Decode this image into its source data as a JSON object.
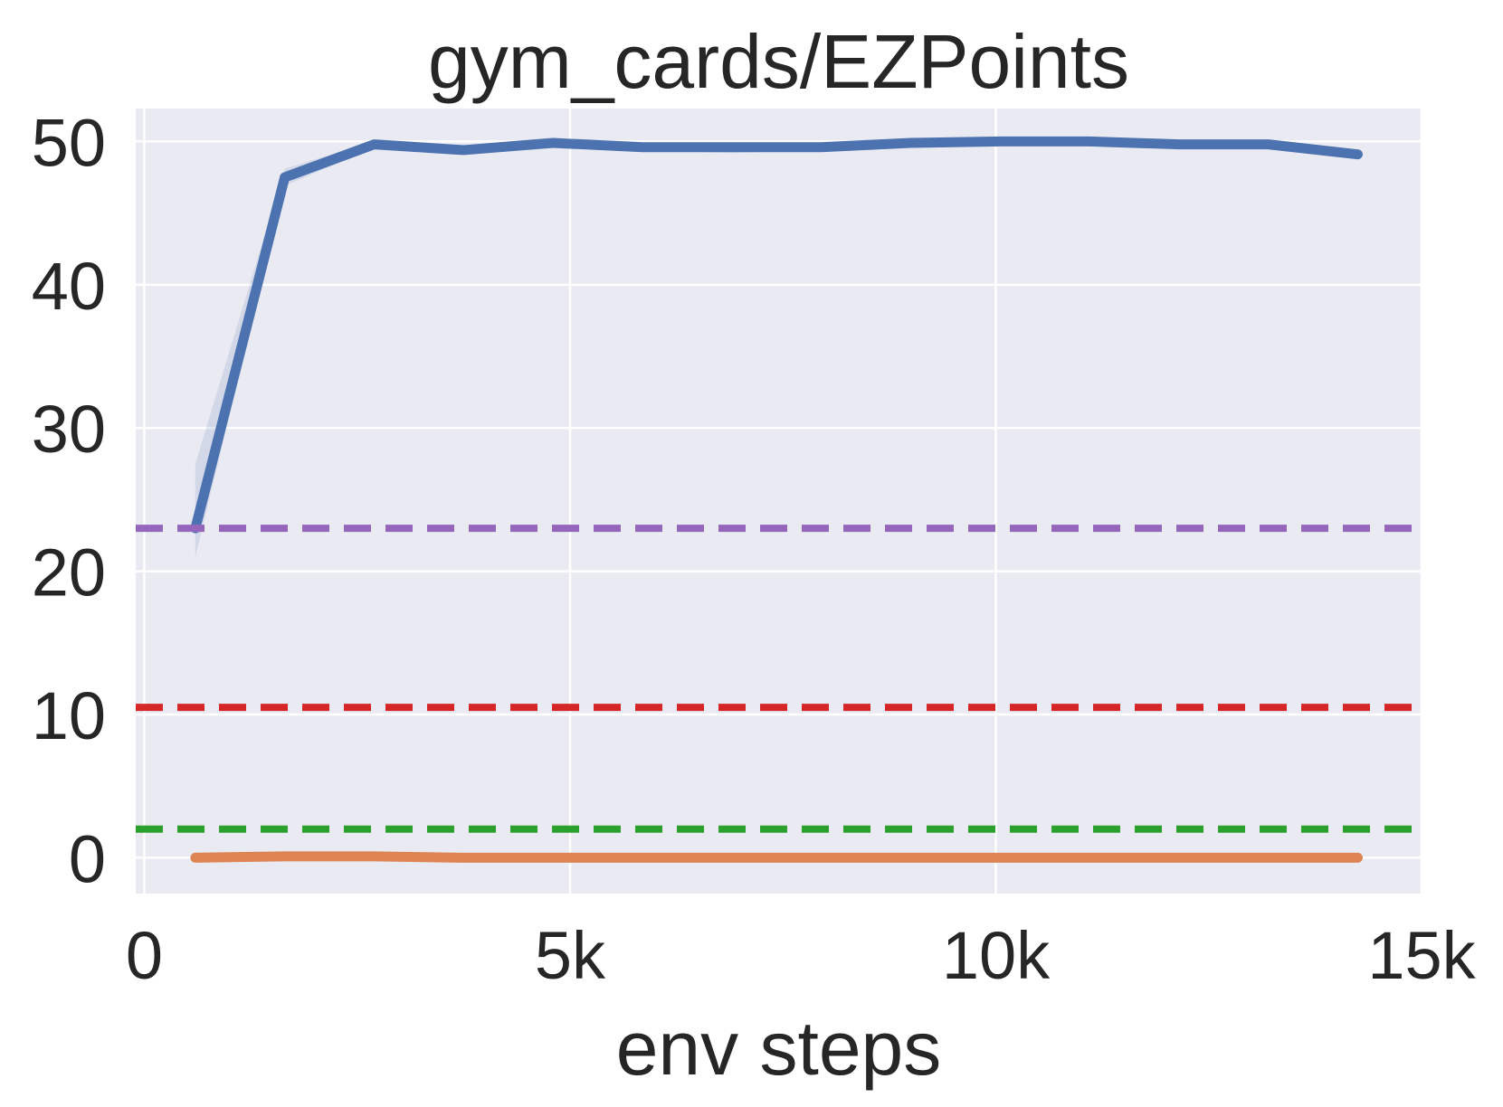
{
  "chart_data": {
    "type": "line",
    "title": "gym_cards/EZPoints",
    "xlabel": "env steps",
    "ylabel": "",
    "xlim": [
      -100,
      15000
    ],
    "ylim": [
      -2.5,
      52.3
    ],
    "x_ticks": [
      {
        "value": 0,
        "label": "0"
      },
      {
        "value": 5000,
        "label": "5k"
      },
      {
        "value": 10000,
        "label": "10k"
      },
      {
        "value": 15000,
        "label": "15k"
      }
    ],
    "y_ticks": [
      {
        "value": 0,
        "label": "0"
      },
      {
        "value": 10,
        "label": "10"
      },
      {
        "value": 20,
        "label": "20"
      },
      {
        "value": 30,
        "label": "30"
      },
      {
        "value": 40,
        "label": "40"
      },
      {
        "value": 50,
        "label": "50"
      }
    ],
    "grid": true,
    "legend": "none",
    "background_color": "#eaeaf2",
    "series": [
      {
        "color": "#4c72b0",
        "style": "solid",
        "x": [
          600,
          1650,
          2700,
          3750,
          4800,
          5850,
          6900,
          7950,
          9000,
          10050,
          11100,
          12150,
          13200,
          14250
        ],
        "y": [
          23.0,
          47.5,
          49.8,
          49.4,
          49.9,
          49.6,
          49.6,
          49.6,
          49.9,
          50.0,
          50.0,
          49.8,
          49.8,
          49.1
        ],
        "band_lower": [
          21.0,
          46.9,
          49.6,
          49.2,
          49.7,
          49.4,
          49.2,
          49.4,
          49.7,
          49.8,
          49.8,
          49.6,
          49.6,
          48.8
        ],
        "band_upper": [
          27.5,
          48.1,
          50.0,
          49.6,
          50.1,
          49.8,
          49.8,
          49.8,
          50.1,
          50.2,
          50.2,
          50.0,
          50.0,
          49.4
        ]
      },
      {
        "color": "#dd8452",
        "style": "solid",
        "x": [
          600,
          1650,
          2700,
          3750,
          4800,
          5850,
          6900,
          7950,
          9000,
          10050,
          11100,
          12150,
          13200,
          14250
        ],
        "y": [
          0.0,
          0.1,
          0.1,
          0.0,
          0.0,
          0.0,
          0.0,
          0.0,
          0.0,
          0.0,
          0.0,
          0.0,
          0.0,
          0.0
        ]
      },
      {
        "color": "#9467bd",
        "style": "dashed",
        "constant": 23.0
      },
      {
        "color": "#d62728",
        "style": "dashed",
        "constant": 10.5
      },
      {
        "color": "#2ca02c",
        "style": "dashed",
        "constant": 2.0
      }
    ]
  }
}
